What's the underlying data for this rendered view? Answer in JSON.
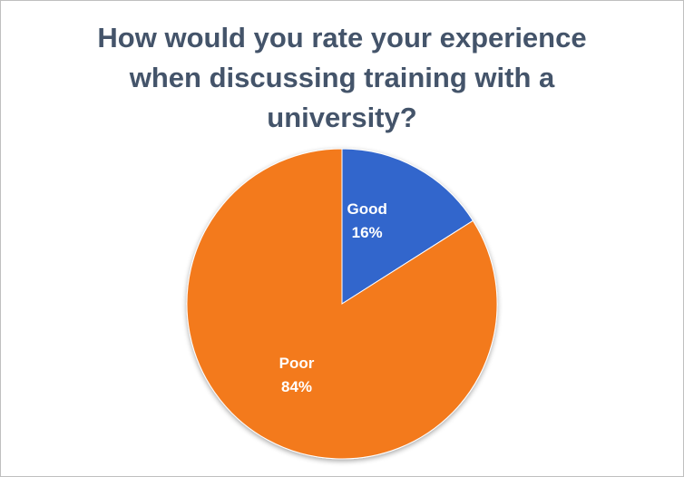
{
  "chart_data": {
    "type": "pie",
    "title": [
      "How would you rate your experience",
      "when discussing training with a",
      "university?"
    ],
    "categories": [
      "Good",
      "Poor"
    ],
    "values": [
      16,
      84
    ],
    "data_labels": [
      {
        "category": "Good",
        "percent": "16%"
      },
      {
        "category": "Poor",
        "percent": "84%"
      }
    ],
    "colors": {
      "Good": "#3366cc",
      "Poor": "#f37a1f"
    },
    "legend": "none",
    "start_angle": "12 o'clock, clockwise"
  }
}
